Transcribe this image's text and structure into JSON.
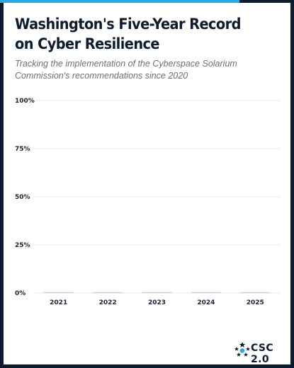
{
  "chart_data": {
    "type": "bar",
    "title": "Washington's Five-Year Record on Cyber Resilience",
    "subtitle": "Tracking the implementation of the Cyberspace Solarium Commission's recommendations since 2020",
    "categories": [
      "2021",
      "2022",
      "2023",
      "2024",
      "2025"
    ],
    "values": [
      0,
      0,
      0,
      0,
      0
    ],
    "ylim": [
      0,
      100
    ],
    "yticks": [
      "0%",
      "25%",
      "50%",
      "75%",
      "100%"
    ],
    "ytick_values": [
      0,
      25,
      50,
      75,
      100
    ],
    "grid": true,
    "colors": {
      "bar": "#c9ccd1",
      "grid": "#e6e8eb",
      "text": "#1a2333"
    }
  },
  "brand": {
    "logo_text": "CSC 2.0",
    "accent_color": "#29a9e1",
    "frame_color": "#0d1b2e"
  }
}
